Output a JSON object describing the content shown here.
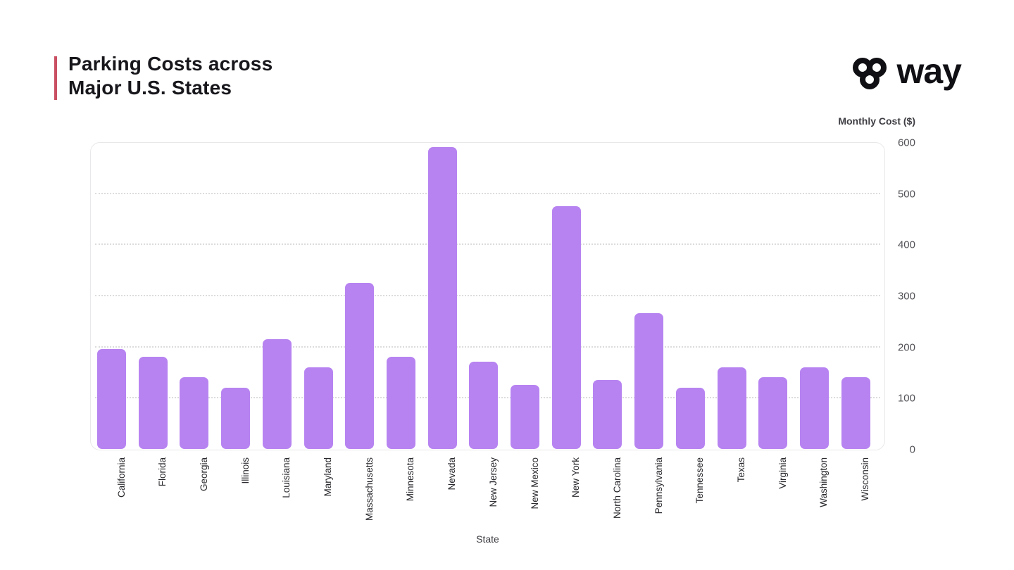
{
  "header": {
    "title_line1": "Parking Costs across",
    "title_line2": "Major U.S. States",
    "brand": "way"
  },
  "colors": {
    "accent_bar": "#c94f62",
    "bar_fill": "#b783f1",
    "brand_text": "#101014"
  },
  "chart_data": {
    "type": "bar",
    "title": "Parking Costs across Major U.S. States",
    "xlabel": "State",
    "ylabel": "Monthly Cost ($)",
    "ylim": [
      0,
      600
    ],
    "yticks": [
      0,
      100,
      200,
      300,
      400,
      500,
      600
    ],
    "grid": true,
    "legend": "none",
    "categories": [
      "California",
      "Florida",
      "Georgia",
      "Illinois",
      "Louisiana",
      "Maryland",
      "Massachusetts",
      "Minnesota",
      "Nevada",
      "New Jersey",
      "New Mexico",
      "New York",
      "North Carolina",
      "Pennsylvania",
      "Tennessee",
      "Texas",
      "Virginia",
      "Washington",
      "Wisconsin"
    ],
    "values": [
      195,
      180,
      140,
      120,
      215,
      160,
      325,
      180,
      590,
      170,
      125,
      475,
      135,
      265,
      120,
      160,
      140,
      160,
      140
    ]
  }
}
